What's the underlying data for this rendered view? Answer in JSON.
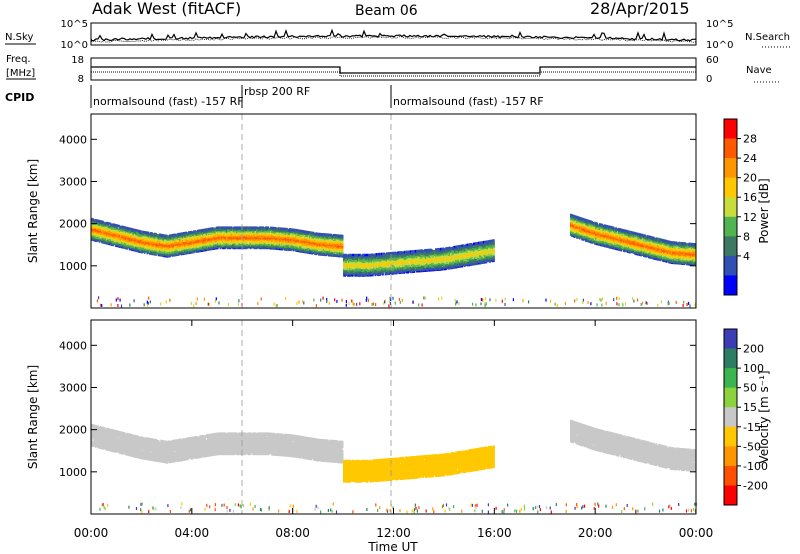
{
  "header": {
    "station": "Adak West (fitACF)",
    "beam": "Beam 06",
    "date": "28/Apr/2015"
  },
  "ancillary": {
    "nsky_label": "N.Sky",
    "nsky_ticks": [
      "10^5",
      "10^0"
    ],
    "nsearch_label": "N.Search",
    "freq_label_1": "Freq.",
    "freq_label_2": "[MHz]",
    "freq_ticks": [
      "18",
      "8"
    ],
    "nave_label": "Nave",
    "nave_ticks": [
      "60",
      "0"
    ],
    "cpid_label": "CPID",
    "cpid_segments": [
      {
        "label": "normalsound (fast) -157 RF"
      },
      {
        "label": "rbsp 200 RF"
      },
      {
        "label": "normalsound (fast) -157 RF"
      }
    ]
  },
  "colorbars": {
    "power": {
      "title": "Power [dB]",
      "ticks": [
        "28",
        "24",
        "20",
        "16",
        "12",
        "8",
        "4"
      ],
      "colors": [
        "#ff0000",
        "#ff5a00",
        "#ff9600",
        "#ffc800",
        "#c8dc3c",
        "#50b450",
        "#3c7864",
        "#3250b4",
        "#0000ff"
      ]
    },
    "velocity": {
      "title": "Velocity [m s⁻¹]",
      "ticks": [
        "200",
        "100",
        "50",
        "15",
        "-15",
        "-50",
        "-100",
        "-200"
      ],
      "colors": [
        "#3c3cb4",
        "#2d7d64",
        "#3cb450",
        "#8cd23c",
        "#c8c8c8",
        "#ffc800",
        "#ff9600",
        "#ff5000",
        "#ff0000"
      ]
    }
  },
  "chart_data": [
    {
      "type": "heatmap",
      "panel": "power",
      "xlabel": "",
      "ylabel": "Slant Range [km]",
      "x_range_hours": [
        0,
        24
      ],
      "y_range_km": [
        0,
        4600
      ],
      "yticks": [
        "4000",
        "3000",
        "2000",
        "1000"
      ],
      "cbar_range_db": [
        0,
        32
      ],
      "bands": [
        {
          "x": [
            0,
            1,
            2,
            3,
            4,
            5,
            6,
            7,
            8,
            9,
            10
          ],
          "center_km": [
            1900,
            1750,
            1600,
            1500,
            1600,
            1700,
            1700,
            1700,
            1650,
            1550,
            1500
          ],
          "width_km": 500,
          "peak_db": 28
        },
        {
          "x": [
            10,
            11,
            12,
            13,
            14,
            15,
            16
          ],
          "center_km": [
            1050,
            1050,
            1100,
            1150,
            1200,
            1300,
            1400
          ],
          "width_km": 500,
          "peak_db": 20
        },
        {
          "x": [
            19,
            20,
            21,
            22,
            23,
            24
          ],
          "center_km": [
            2000,
            1800,
            1650,
            1500,
            1350,
            1300
          ],
          "width_km": 500,
          "peak_db": 28
        }
      ]
    },
    {
      "type": "heatmap",
      "panel": "velocity",
      "xlabel": "Time UT",
      "ylabel": "Slant Range [km]",
      "x_range_hours": [
        0,
        24
      ],
      "y_range_km": [
        0,
        4600
      ],
      "yticks": [
        "4000",
        "3000",
        "2000",
        "1000"
      ],
      "xticks": [
        "00:00",
        "04:00",
        "08:00",
        "12:00",
        "16:00",
        "20:00",
        "00:00"
      ],
      "cbar_range_ms": [
        -250,
        250
      ],
      "bands": [
        {
          "x": [
            0,
            1,
            2,
            3,
            4,
            5,
            6,
            7,
            8,
            9,
            10
          ],
          "center_km": [
            1900,
            1750,
            1600,
            1500,
            1600,
            1700,
            1700,
            1700,
            1650,
            1550,
            1500
          ],
          "width_km": 500,
          "velocity_ms": 0
        },
        {
          "x": [
            10,
            11,
            12,
            13,
            14,
            15,
            16
          ],
          "center_km": [
            1050,
            1050,
            1100,
            1150,
            1200,
            1300,
            1400
          ],
          "width_km": 500,
          "velocity_ms": -60
        },
        {
          "x": [
            19,
            20,
            21,
            22,
            23,
            24
          ],
          "center_km": [
            2000,
            1800,
            1650,
            1500,
            1350,
            1300
          ],
          "width_km": 500,
          "velocity_ms": 0
        }
      ]
    }
  ]
}
